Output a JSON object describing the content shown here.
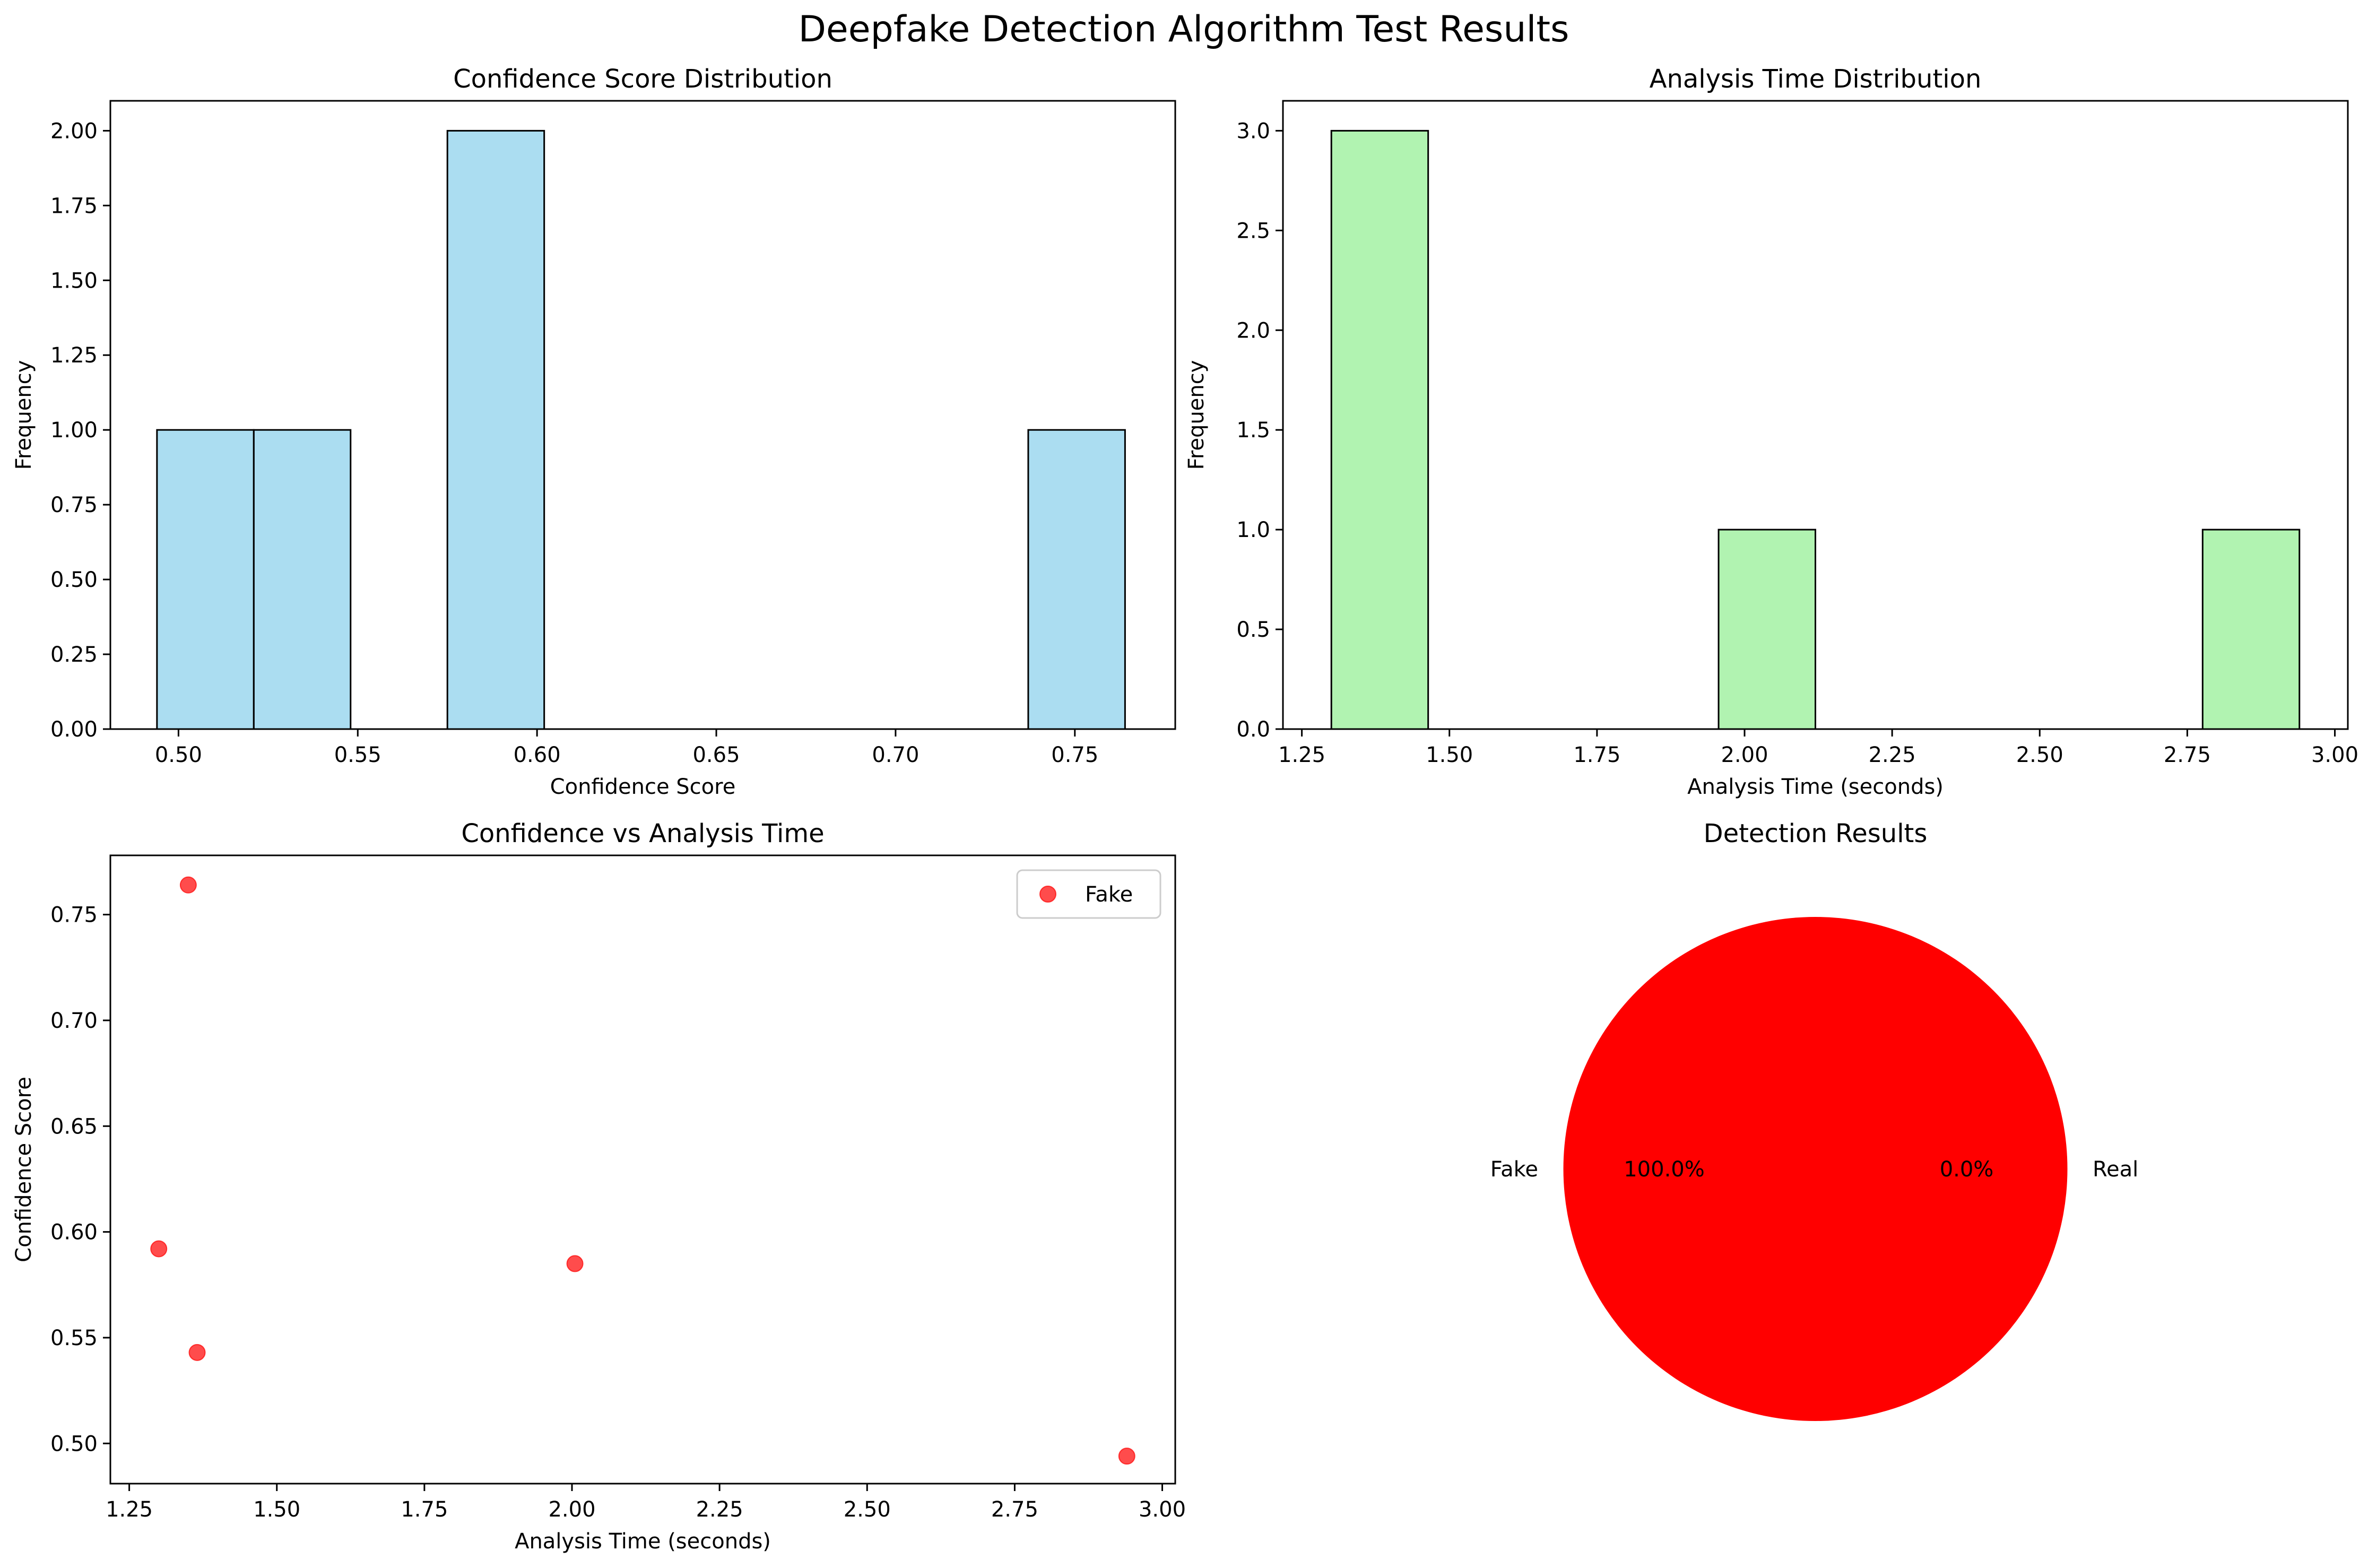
{
  "figure": {
    "title": "Deepfake Detection Algorithm Test Results"
  },
  "chart_data": [
    {
      "id": "confidence_hist",
      "type": "bar",
      "subtype": "histogram",
      "title": "Confidence Score Distribution",
      "xlabel": "Confidence Score",
      "ylabel": "Frequency",
      "xlim": [
        0.481,
        0.778
      ],
      "ylim": [
        0,
        2.1
      ],
      "xticks": [
        0.5,
        0.55,
        0.6,
        0.65,
        0.7,
        0.75
      ],
      "xtick_labels": [
        "0.50",
        "0.55",
        "0.60",
        "0.65",
        "0.70",
        "0.75"
      ],
      "yticks": [
        0,
        0.25,
        0.5,
        0.75,
        1.0,
        1.25,
        1.5,
        1.75,
        2.0
      ],
      "ytick_labels": [
        "0.00",
        "0.25",
        "0.50",
        "0.75",
        "1.00",
        "1.25",
        "1.50",
        "1.75",
        "2.00"
      ],
      "bin_edges": [
        0.494,
        0.521,
        0.548,
        0.575,
        0.602,
        0.629,
        0.656,
        0.683,
        0.71,
        0.737,
        0.764
      ],
      "values": [
        1,
        1,
        0,
        2,
        0,
        0,
        0,
        0,
        0,
        1
      ],
      "color": "#87ceeb",
      "edge_color": "#000000",
      "grid": false
    },
    {
      "id": "time_hist",
      "type": "bar",
      "subtype": "histogram",
      "title": "Analysis Time Distribution",
      "xlabel": "Analysis Time (seconds)",
      "ylabel": "Frequency",
      "xlim": [
        1.218,
        3.022
      ],
      "ylim": [
        0,
        3.15
      ],
      "xticks": [
        1.25,
        1.5,
        1.75,
        2.0,
        2.25,
        2.5,
        2.75,
        3.0
      ],
      "xtick_labels": [
        "1.25",
        "1.50",
        "1.75",
        "2.00",
        "2.25",
        "2.50",
        "2.75",
        "3.00"
      ],
      "yticks": [
        0,
        0.5,
        1.0,
        1.5,
        2.0,
        2.5,
        3.0
      ],
      "ytick_labels": [
        "0.0",
        "0.5",
        "1.0",
        "1.5",
        "2.0",
        "2.5",
        "3.0"
      ],
      "bin_edges": [
        1.3,
        1.464,
        1.628,
        1.792,
        1.956,
        2.12,
        2.284,
        2.448,
        2.612,
        2.776,
        2.94
      ],
      "values": [
        3,
        0,
        0,
        0,
        1,
        0,
        0,
        0,
        0,
        1
      ],
      "color": "#90ee90",
      "edge_color": "#000000",
      "grid": false
    },
    {
      "id": "scatter",
      "type": "scatter",
      "title": "Confidence vs Analysis Time",
      "xlabel": "Analysis Time (seconds)",
      "ylabel": "Confidence Score",
      "xlim": [
        1.218,
        3.022
      ],
      "ylim": [
        0.481,
        0.778
      ],
      "xticks": [
        1.25,
        1.5,
        1.75,
        2.0,
        2.25,
        2.5,
        2.75,
        3.0
      ],
      "xtick_labels": [
        "1.25",
        "1.50",
        "1.75",
        "2.00",
        "2.25",
        "2.50",
        "2.75",
        "3.00"
      ],
      "yticks": [
        0.5,
        0.55,
        0.6,
        0.65,
        0.7,
        0.75
      ],
      "ytick_labels": [
        "0.50",
        "0.55",
        "0.60",
        "0.65",
        "0.70",
        "0.75"
      ],
      "series": [
        {
          "name": "Fake",
          "color": "#ff0000",
          "points": [
            {
              "x": 1.35,
              "y": 0.764
            },
            {
              "x": 1.3,
              "y": 0.592
            },
            {
              "x": 1.365,
              "y": 0.543
            },
            {
              "x": 2.005,
              "y": 0.585
            },
            {
              "x": 2.94,
              "y": 0.494
            }
          ]
        }
      ],
      "legend": "upper right",
      "grid": false
    },
    {
      "id": "pie",
      "type": "pie",
      "title": "Detection Results",
      "labels": [
        "Fake",
        "Real"
      ],
      "values": [
        100,
        0
      ],
      "pct_labels": [
        "100.0%",
        "0.0%"
      ],
      "colors": [
        "#ff0000",
        "#00ff00"
      ]
    }
  ]
}
